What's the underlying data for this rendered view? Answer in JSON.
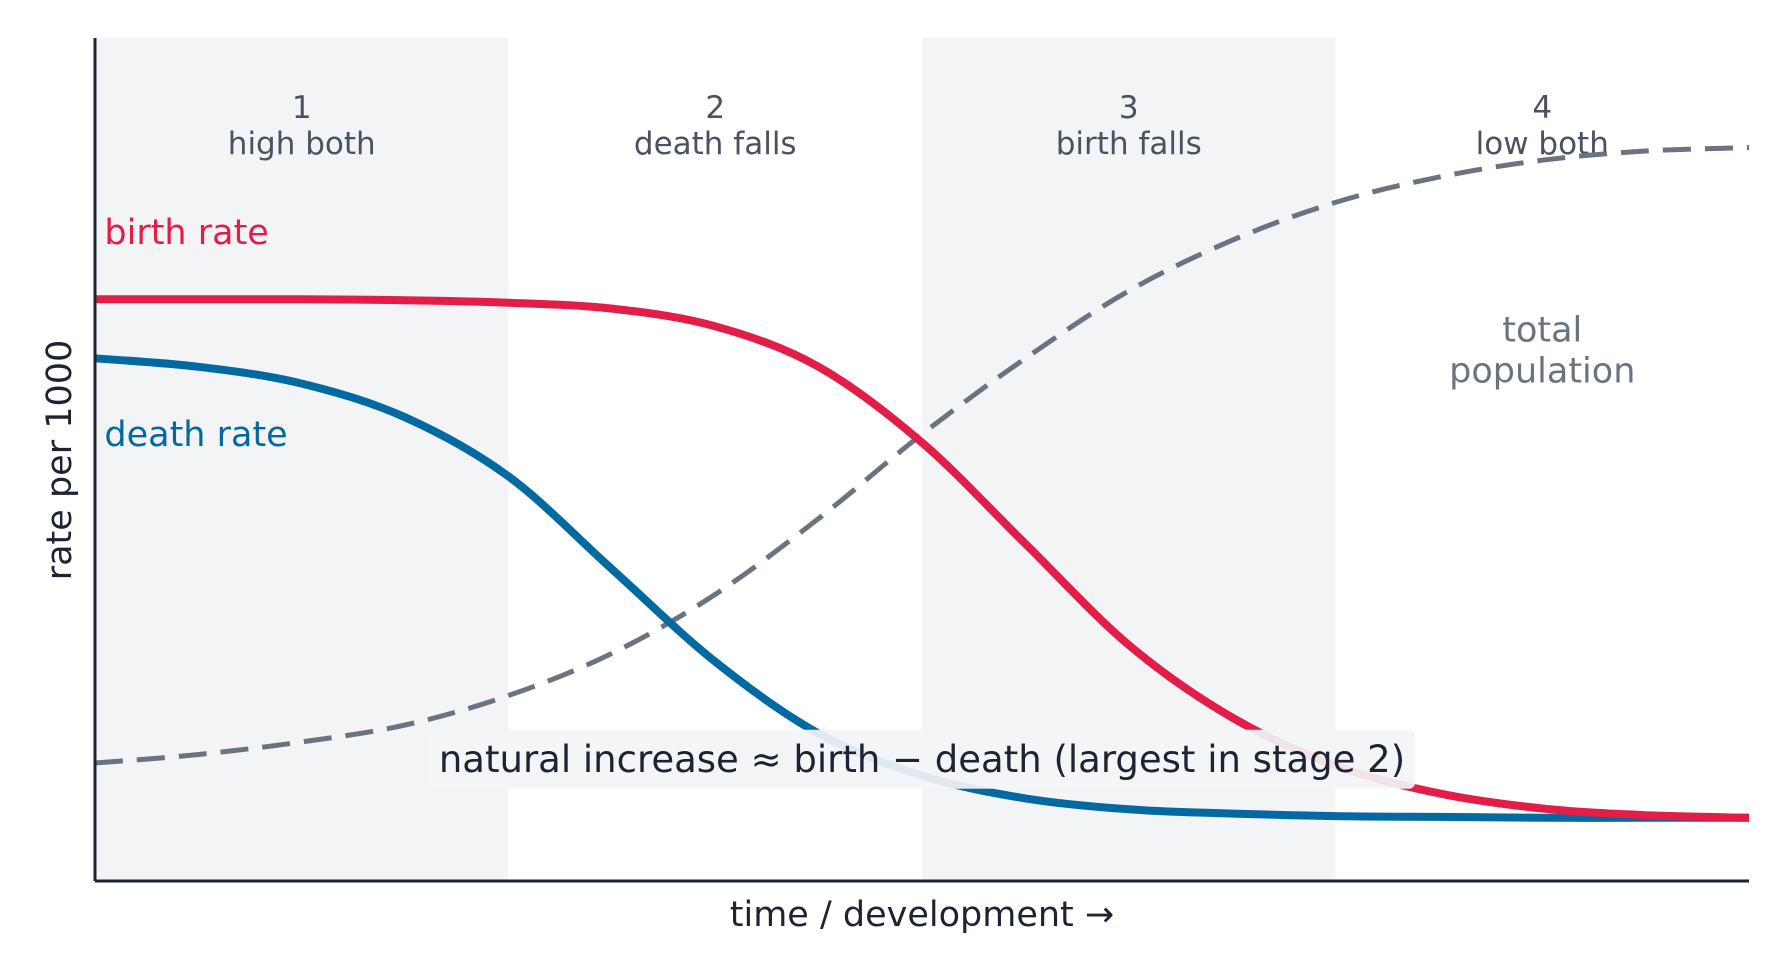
{
  "chart_data": {
    "type": "line",
    "title": "",
    "xlabel": "time / development  →",
    "ylabel": "rate per 1000",
    "xlim": [
      0,
      4
    ],
    "ylim": [
      0,
      100
    ],
    "grid": false,
    "legend": "none",
    "stages": [
      {
        "number": "1",
        "name": "high both",
        "x_start": 0,
        "x_end": 1,
        "shaded": true
      },
      {
        "number": "2",
        "name": "death falls",
        "x_start": 1,
        "x_end": 2,
        "shaded": false
      },
      {
        "number": "3",
        "name": "birth falls",
        "x_start": 2,
        "x_end": 3,
        "shaded": true
      },
      {
        "number": "4",
        "name": "low both",
        "x_start": 3,
        "x_end": 4,
        "shaded": false
      }
    ],
    "series": [
      {
        "name": "birth rate",
        "color": "#e11d48",
        "style": "solid",
        "x": [
          0,
          0.25,
          0.5,
          0.75,
          1.0,
          1.25,
          1.5,
          1.75,
          2.0,
          2.25,
          2.5,
          2.75,
          3.0,
          3.25,
          3.5,
          3.75,
          4.0
        ],
        "values": [
          69,
          69,
          69,
          68.9,
          68.6,
          67.9,
          65.8,
          61,
          52,
          40,
          28,
          19.4,
          13.7,
          10.4,
          8.6,
          7.8,
          7.5
        ]
      },
      {
        "name": "death rate",
        "color": "#0369a1",
        "style": "solid",
        "x": [
          0,
          0.25,
          0.5,
          0.75,
          1.0,
          1.25,
          1.5,
          1.75,
          2.0,
          2.25,
          2.5,
          2.75,
          3.0,
          3.25,
          3.5,
          3.75,
          4.0
        ],
        "values": [
          62,
          61,
          59,
          55,
          48,
          37,
          26,
          17.5,
          12.5,
          9.8,
          8.5,
          8,
          7.7,
          7.6,
          7.5,
          7.5,
          7.5
        ]
      },
      {
        "name": "total population",
        "color": "#6b7280",
        "style": "dashed",
        "x": [
          0,
          0.25,
          0.5,
          0.75,
          1.0,
          1.25,
          1.5,
          1.75,
          2.0,
          2.25,
          2.5,
          2.75,
          3.0,
          3.25,
          3.5,
          3.75,
          4.0
        ],
        "values": [
          14,
          15,
          16.5,
          18.5,
          22,
          27,
          34,
          43,
          53,
          62,
          70,
          76,
          80.5,
          83.5,
          85.5,
          86.6,
          87
        ]
      }
    ],
    "series_labels": [
      {
        "series": 0,
        "text": "birth rate",
        "x": 0.25,
        "y": 77
      },
      {
        "series": 1,
        "text": "death rate",
        "x": 0.25,
        "y": 53
      },
      {
        "series": 2,
        "lines": [
          "total",
          "population"
        ],
        "x": 3.5,
        "y": 64
      }
    ],
    "annotation": {
      "text": "natural increase  ≈  birth − death  (largest in stage 2)",
      "x": 2.0,
      "y": 14.5
    }
  }
}
